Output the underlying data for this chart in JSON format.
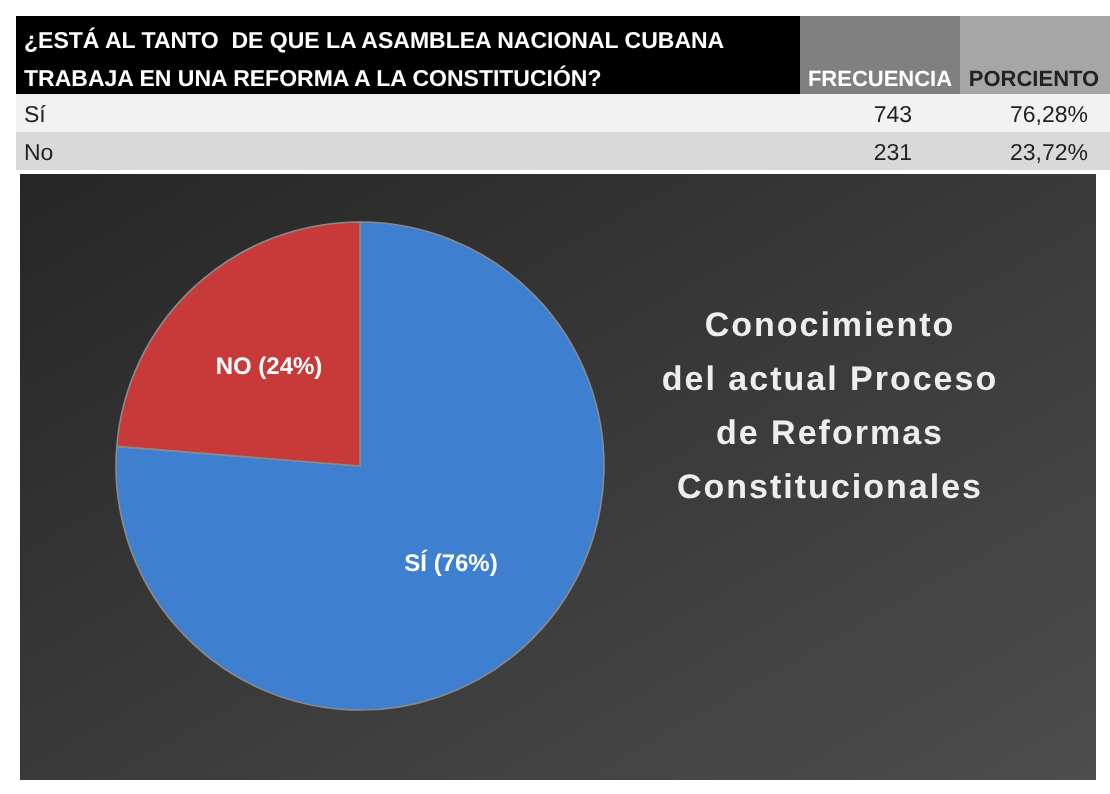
{
  "chart_data": {
    "type": "pie",
    "title": "Conocimiento\ndel actual Proceso\nde Reformas\nConstitucionales",
    "subtitle": "¿ESTÁ AL TANTO  DE QUE LA ASAMBLEA NACIONAL CUBANA\nTRABAJA EN UNA REFORMA A LA CONSTITUCIÓN?",
    "categories": [
      null,
      null
    ],
    "values": [
      76.28,
      23.72
    ],
    "colors": [
      "#3f7fd0",
      "#c83a3a"
    ],
    "value_labels": [
      "SÍ (76%)",
      "NO (24%)"
    ],
    "annotations": [
      "FRECUENCIA",
      "PORCIENTO",
      "Sí",
      "743",
      "76,28%",
      "No",
      "231",
      "23,72%"
    ]
  }
}
